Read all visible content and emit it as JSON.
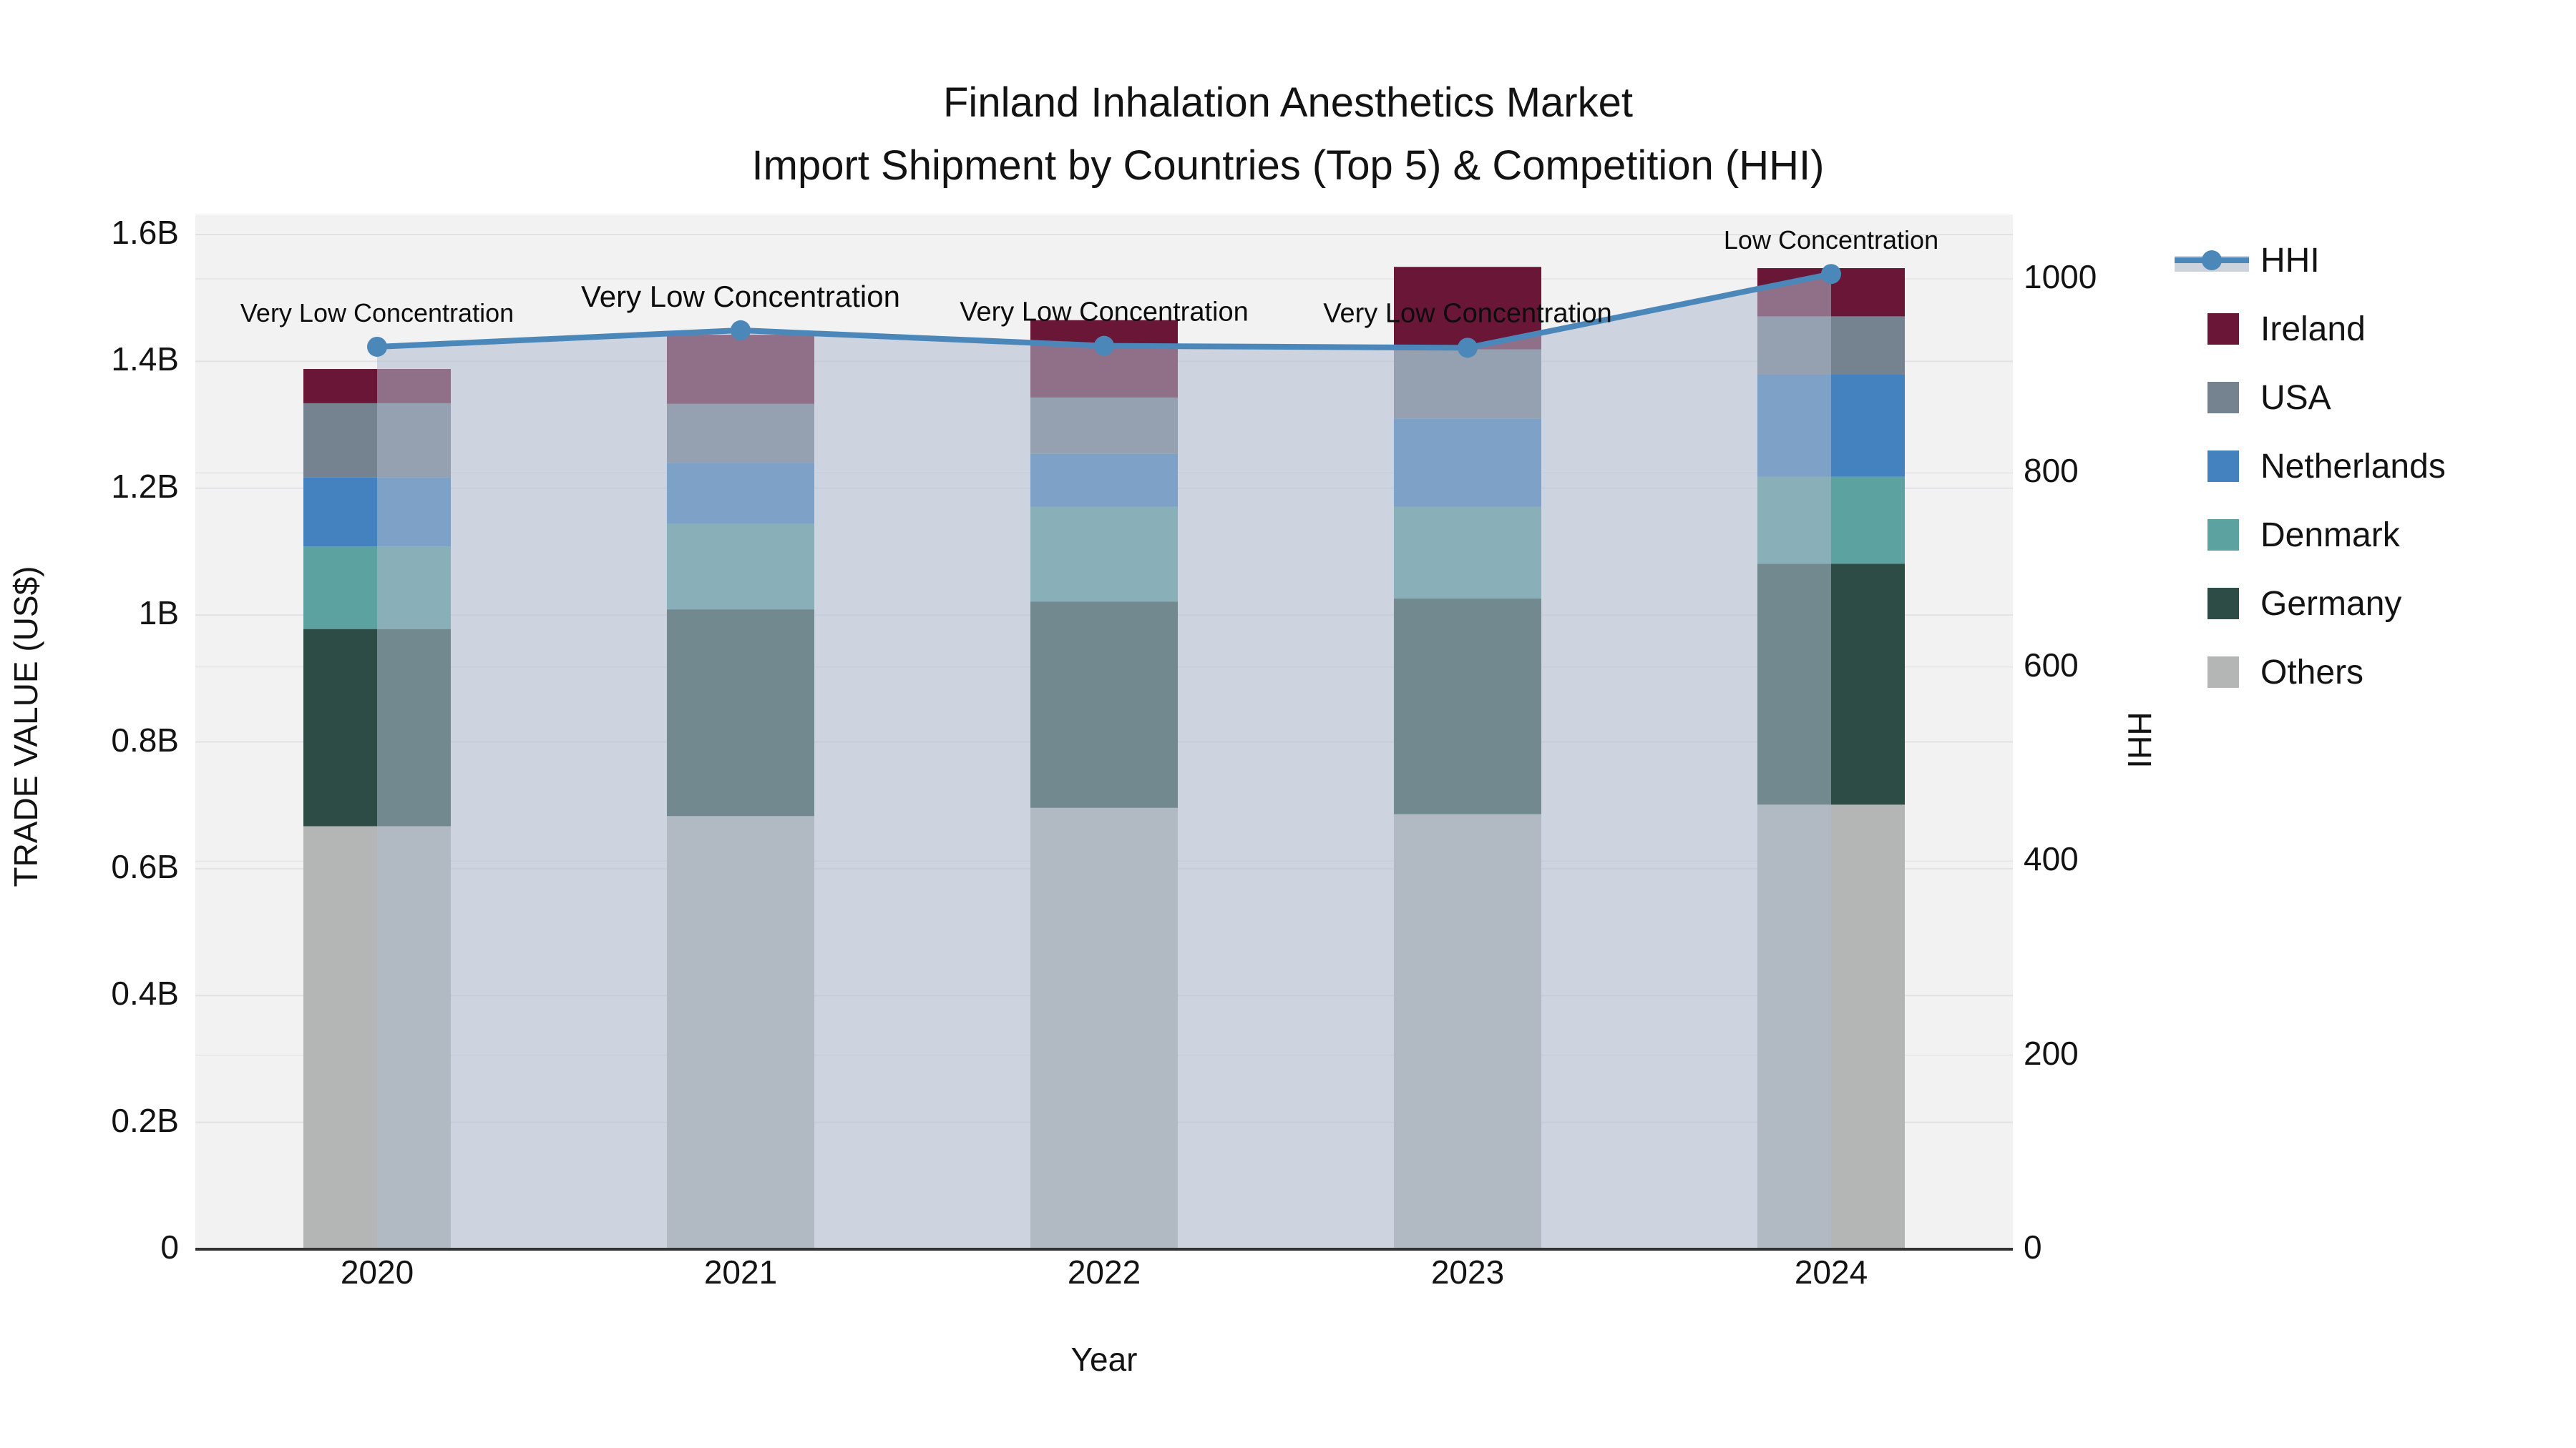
{
  "title": {
    "line1": "Finland Inhalation Anesthetics Market",
    "line2": "Import Shipment by Countries (Top 5) & Competition (HHI)"
  },
  "axes": {
    "left": {
      "title": "TRADE VALUE (US$)",
      "ticks": [
        {
          "value": 0,
          "label": "0"
        },
        {
          "value": 0.2,
          "label": "0.2B"
        },
        {
          "value": 0.4,
          "label": "0.4B"
        },
        {
          "value": 0.6,
          "label": "0.6B"
        },
        {
          "value": 0.8,
          "label": "0.8B"
        },
        {
          "value": 1.0,
          "label": "1B"
        },
        {
          "value": 1.2,
          "label": "1.2B"
        },
        {
          "value": 1.4,
          "label": "1.4B"
        },
        {
          "value": 1.6,
          "label": "1.6B"
        }
      ]
    },
    "right": {
      "title": "HHI",
      "ticks": [
        {
          "value": 0,
          "label": "0"
        },
        {
          "value": 200,
          "label": "200"
        },
        {
          "value": 400,
          "label": "400"
        },
        {
          "value": 600,
          "label": "600"
        },
        {
          "value": 800,
          "label": "800"
        },
        {
          "value": 1000,
          "label": "1000"
        }
      ]
    },
    "x": {
      "title": "Year",
      "categories": [
        "2020",
        "2021",
        "2022",
        "2023",
        "2024"
      ]
    }
  },
  "chart_data": {
    "type": "bar",
    "subtype": "stacked-bar-with-line",
    "categories": [
      "2020",
      "2021",
      "2022",
      "2023",
      "2024"
    ],
    "bar_unit": "billions US$",
    "stack_order_bottom_to_top": [
      "Others",
      "Germany",
      "Denmark",
      "Netherlands",
      "USA",
      "Ireland"
    ],
    "series": [
      {
        "name": "Others",
        "color": "#b4b6b5",
        "values": [
          0.667,
          0.683,
          0.696,
          0.686,
          0.701
        ]
      },
      {
        "name": "Germany",
        "color": "#2c4c45",
        "values": [
          0.311,
          0.326,
          0.325,
          0.34,
          0.38
        ]
      },
      {
        "name": "Denmark",
        "color": "#5ca2a0",
        "values": [
          0.13,
          0.135,
          0.15,
          0.145,
          0.137
        ]
      },
      {
        "name": "Netherlands",
        "color": "#4382be",
        "values": [
          0.109,
          0.096,
          0.083,
          0.139,
          0.161
        ]
      },
      {
        "name": "USA",
        "color": "#75828f",
        "values": [
          0.117,
          0.093,
          0.089,
          0.109,
          0.092
        ]
      },
      {
        "name": "Ireland",
        "color": "#6a1637",
        "values": [
          0.054,
          0.109,
          0.122,
          0.13,
          0.076
        ]
      }
    ],
    "bar_totals": [
      1.388,
      1.442,
      1.465,
      1.549,
      1.547
    ],
    "line_series": {
      "name": "HHI",
      "color": "#4c87ba",
      "area_fill": "rgba(174,188,206,0.55)",
      "values": [
        930,
        947,
        931,
        929,
        1005
      ]
    },
    "annotations": [
      {
        "category": "2020",
        "text": "Very Low Concentration"
      },
      {
        "category": "2021",
        "text": "Very Low Concentration"
      },
      {
        "category": "2022",
        "text": "Very Low Concentration"
      },
      {
        "category": "2023",
        "text": "Very Low Concentration"
      },
      {
        "category": "2024",
        "text": "Low Concentration"
      }
    ],
    "ylim_left": [
      0,
      1.6
    ],
    "ylim_right": [
      0,
      1066
    ],
    "grid": true,
    "legend_position": "right"
  },
  "legend": {
    "items": [
      {
        "label": "HHI",
        "swatch": "line-dot",
        "color": "#4c87ba"
      },
      {
        "label": "Ireland",
        "swatch": "square",
        "color": "#6a1637"
      },
      {
        "label": "USA",
        "swatch": "square",
        "color": "#75828f"
      },
      {
        "label": "Netherlands",
        "swatch": "square",
        "color": "#4382be"
      },
      {
        "label": "Denmark",
        "swatch": "square",
        "color": "#5ca2a0"
      },
      {
        "label": "Germany",
        "swatch": "square",
        "color": "#2c4c45"
      },
      {
        "label": "Others",
        "swatch": "square",
        "color": "#b4b6b5"
      }
    ]
  },
  "colors": {
    "plot_background": "#f2f2f3",
    "page_background": "#ffffff",
    "gridline": "#e2e2e4",
    "axis_line": "#333333",
    "text": "#131313"
  }
}
